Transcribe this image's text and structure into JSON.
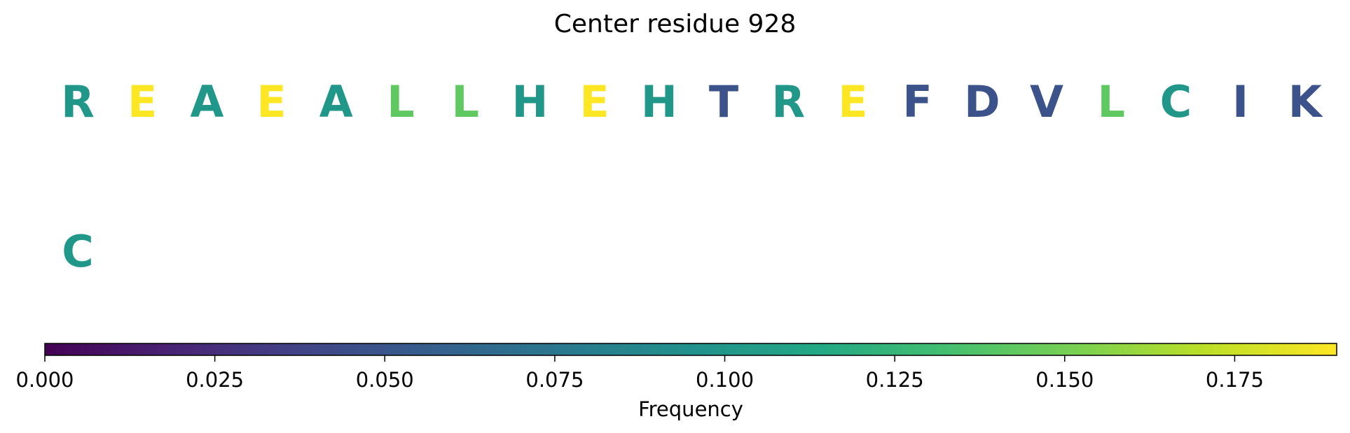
{
  "chart_data": {
    "type": "heatmap",
    "title": "Center residue 928",
    "rows": [
      [
        {
          "letter": "R",
          "value": 0.1
        },
        {
          "letter": "E",
          "value": 0.19
        },
        {
          "letter": "A",
          "value": 0.1
        },
        {
          "letter": "E",
          "value": 0.19
        },
        {
          "letter": "A",
          "value": 0.1
        },
        {
          "letter": "L",
          "value": 0.143
        },
        {
          "letter": "L",
          "value": 0.143
        },
        {
          "letter": "H",
          "value": 0.1
        },
        {
          "letter": "E",
          "value": 0.19
        },
        {
          "letter": "H",
          "value": 0.1
        },
        {
          "letter": "T",
          "value": 0.048
        },
        {
          "letter": "R",
          "value": 0.1
        },
        {
          "letter": "E",
          "value": 0.19
        },
        {
          "letter": "F",
          "value": 0.048
        },
        {
          "letter": "D",
          "value": 0.048
        },
        {
          "letter": "V",
          "value": 0.048
        },
        {
          "letter": "L",
          "value": 0.143
        },
        {
          "letter": "C",
          "value": 0.1
        },
        {
          "letter": "I",
          "value": 0.048
        },
        {
          "letter": "K",
          "value": 0.048
        }
      ],
      [
        {
          "letter": "C",
          "value": 0.1
        }
      ]
    ],
    "colorbar": {
      "label": "Frequency",
      "colormap": "viridis",
      "range": [
        0,
        0.19
      ],
      "ticks": [
        0.0,
        0.025,
        0.05,
        0.075,
        0.1,
        0.125,
        0.15,
        0.175
      ],
      "tick_labels": [
        "0.000",
        "0.025",
        "0.050",
        "0.075",
        "0.100",
        "0.125",
        "0.150",
        "0.175"
      ]
    }
  }
}
